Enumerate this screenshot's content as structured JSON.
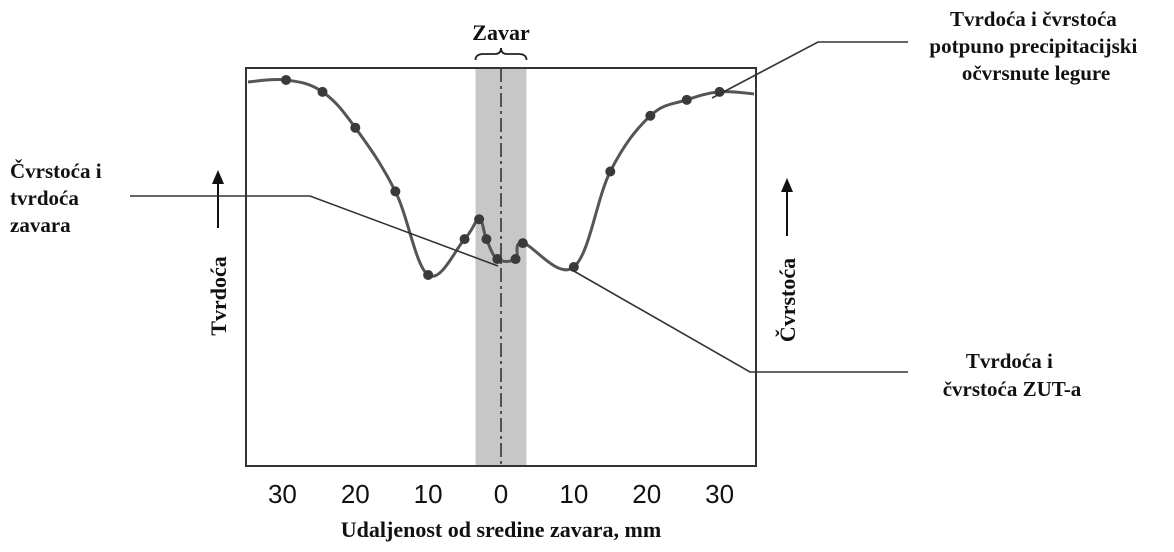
{
  "chart_data": {
    "type": "line",
    "xlabel": "Udaljenost od sredine zavara, mm",
    "ylabel_left": "Tvrdoća",
    "ylabel_right": "Čvrstoća",
    "x_tick_labels": [
      "30",
      "20",
      "10",
      "0",
      "10",
      "20",
      "30"
    ],
    "x_ticks": [
      -30,
      -20,
      -10,
      0,
      10,
      20,
      30
    ],
    "xlim": [
      -35,
      35
    ],
    "ylim": [
      0,
      100
    ],
    "weld_label": "Zavar",
    "weld_zone": [
      -3.5,
      3.5
    ],
    "series": [
      {
        "points": [
          {
            "x": -29.5,
            "y": 97
          },
          {
            "x": -24.5,
            "y": 94
          },
          {
            "x": -20,
            "y": 85
          },
          {
            "x": -14.5,
            "y": 69
          },
          {
            "x": -10,
            "y": 48
          },
          {
            "x": -5,
            "y": 57
          },
          {
            "x": -3,
            "y": 62
          },
          {
            "x": -2,
            "y": 57
          },
          {
            "x": -0.5,
            "y": 52
          },
          {
            "x": 2,
            "y": 52
          },
          {
            "x": 3,
            "y": 56
          },
          {
            "x": 10,
            "y": 50
          },
          {
            "x": 15,
            "y": 74
          },
          {
            "x": 20.5,
            "y": 88
          },
          {
            "x": 25.5,
            "y": 92
          },
          {
            "x": 30,
            "y": 94
          }
        ]
      }
    ],
    "annotations": [
      {
        "id": "precip",
        "lines": [
          "Tvrdoća i čvrstoća",
          "potpuno precipitacijski",
          "očvrsnute legure"
        ]
      },
      {
        "id": "weld",
        "lines": [
          "Čvrstoća i",
          "tvrdoća",
          "zavara"
        ]
      },
      {
        "id": "haz",
        "lines": [
          "Tvrdoća i",
          "čvrstoća ZUT-a"
        ]
      }
    ]
  }
}
